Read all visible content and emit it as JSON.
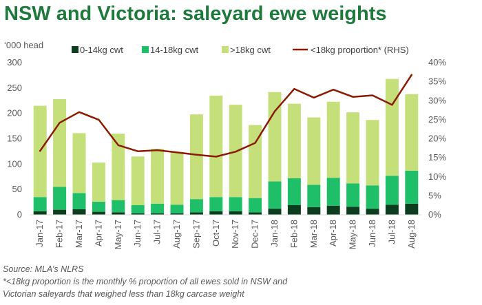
{
  "title": "NSW and Victoria: saleyard ewe weights",
  "source": "Source: MLA’s NLRS",
  "footnote_line1": "*<18kg proportion is the monthly % proportion of all ewes sold in NSW and",
  "footnote_line2": "Victorian saleyards that weighed less than 18kg carcase weight",
  "colors": {
    "title": "#1e7a3c",
    "s0_14": "#0d3d1f",
    "s14_18": "#1fbf6a",
    "s18p": "#c5e07a",
    "line": "#8b1a00",
    "axis_text": "#595959",
    "baseline": "#d9d9d9"
  },
  "chart_data": {
    "type": "bar",
    "stacked": true,
    "ylabel": "‘000 head",
    "ylim": [
      0,
      300
    ],
    "yticks": [
      0,
      50,
      100,
      150,
      200,
      250,
      300
    ],
    "y2lim": [
      0,
      40
    ],
    "y2ticks": [
      "0%",
      "5%",
      "10%",
      "15%",
      "20%",
      "25%",
      "30%",
      "35%",
      "40%"
    ],
    "grid": false,
    "legend_position": "top",
    "categories": [
      "Jan-17",
      "Feb-17",
      "Mar-17",
      "Apr-17",
      "May-17",
      "Jun-17",
      "Jul-17",
      "Aug-17",
      "Sep-17",
      "Oct-17",
      "Nov-17",
      "Dec-17",
      "Jan-18",
      "Feb-18",
      "Mar-18",
      "Apr-18",
      "May-18",
      "Jun-18",
      "Jul-18",
      "Aug-18"
    ],
    "series": [
      {
        "name": "0-14kg cwt",
        "type": "bar",
        "values": [
          7,
          10,
          11,
          6,
          5,
          3,
          3,
          3,
          5,
          7,
          7,
          5,
          12,
          19,
          15,
          18,
          16,
          12,
          20,
          22
        ]
      },
      {
        "name": "14-18kg cwt",
        "type": "bar",
        "values": [
          28,
          45,
          32,
          20,
          24,
          16,
          19,
          17,
          26,
          28,
          28,
          28,
          54,
          53,
          44,
          55,
          46,
          46,
          57,
          65
        ]
      },
      {
        "name": ">18kg cwt",
        "type": "bar",
        "values": [
          180,
          173,
          118,
          77,
          131,
          96,
          108,
          104,
          167,
          200,
          182,
          144,
          176,
          147,
          133,
          150,
          140,
          129,
          191,
          151
        ]
      },
      {
        "name": "<18kg proportion* (RHS)",
        "type": "line",
        "axis": "right",
        "values": [
          16.8,
          24.2,
          27.0,
          25.0,
          18.3,
          16.7,
          17.0,
          16.4,
          15.8,
          15.3,
          16.6,
          18.9,
          27.2,
          33.1,
          30.8,
          32.9,
          31.0,
          31.4,
          28.9,
          36.8
        ]
      }
    ]
  }
}
